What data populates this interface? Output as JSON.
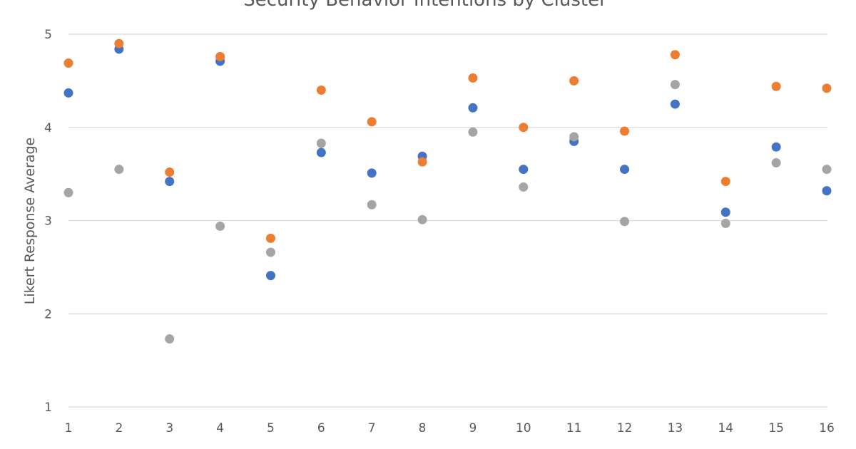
{
  "chart_data": {
    "type": "scatter",
    "title": "Security Behavior Intentions by Cluster",
    "xlabel": "",
    "ylabel": "Likert Response Average",
    "x": [
      1,
      2,
      3,
      4,
      5,
      6,
      7,
      8,
      9,
      10,
      11,
      12,
      13,
      14,
      15,
      16
    ],
    "x_ticks": [
      "1",
      "2",
      "3",
      "4",
      "5",
      "6",
      "7",
      "8",
      "9",
      "10",
      "11",
      "12",
      "13",
      "14",
      "15",
      "16"
    ],
    "y_ticks": [
      "1",
      "2",
      "3",
      "4",
      "5"
    ],
    "ylim": [
      1,
      5
    ],
    "grid": "horizontal",
    "legend": "none",
    "series": [
      {
        "color": "#4472C4",
        "values": [
          4.37,
          4.84,
          3.42,
          4.71,
          2.41,
          3.73,
          3.51,
          3.69,
          4.21,
          3.55,
          3.85,
          3.55,
          4.25,
          3.09,
          3.79,
          3.32
        ]
      },
      {
        "color": "#A5A5A5",
        "values": [
          3.3,
          3.55,
          1.73,
          2.94,
          2.66,
          3.83,
          3.17,
          3.01,
          3.95,
          3.36,
          3.9,
          2.99,
          4.46,
          2.97,
          3.62,
          3.55
        ]
      },
      {
        "color": "#ED7D31",
        "values": [
          4.69,
          4.9,
          3.52,
          4.76,
          2.81,
          4.4,
          4.06,
          3.63,
          4.53,
          4.0,
          4.5,
          3.96,
          4.78,
          3.42,
          4.44,
          4.42
        ]
      }
    ]
  }
}
